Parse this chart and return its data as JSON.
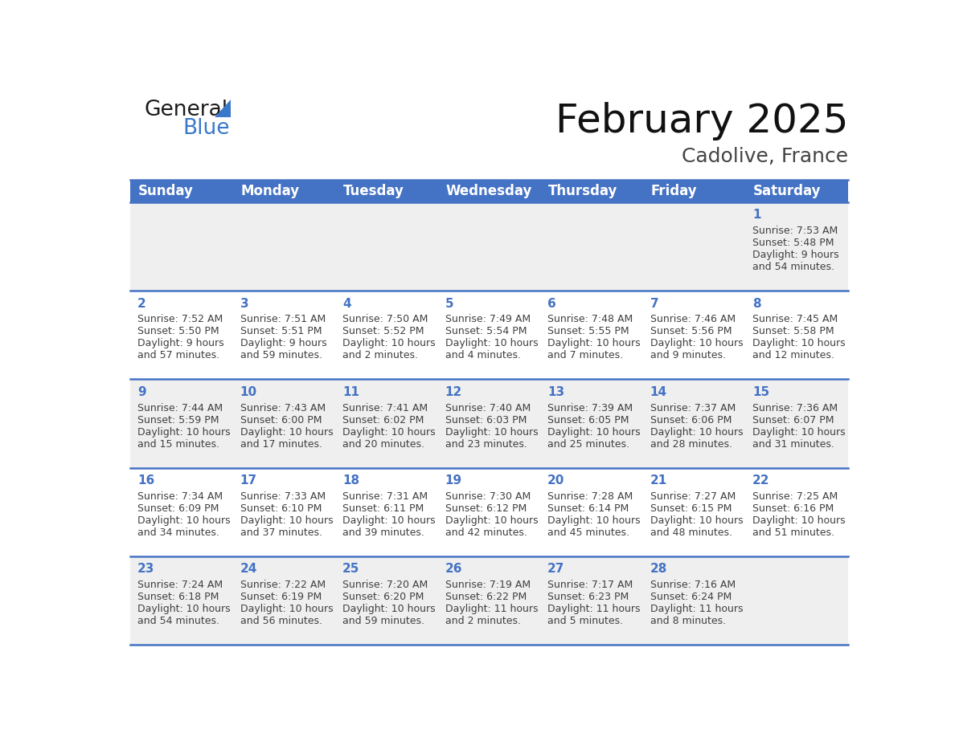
{
  "title": "February 2025",
  "subtitle": "Cadolive, France",
  "days_of_week": [
    "Sunday",
    "Monday",
    "Tuesday",
    "Wednesday",
    "Thursday",
    "Friday",
    "Saturday"
  ],
  "header_bg_color": "#4472C4",
  "header_text_color": "#FFFFFF",
  "row_bg_odd": "#EFEFEF",
  "row_bg_even": "#FFFFFF",
  "border_color": "#4472C4",
  "day_num_color": "#4472C4",
  "text_color": "#404040",
  "grid_line_color": "#4472C4",
  "calendar_data": [
    {
      "day": 1,
      "col": 6,
      "row": 0,
      "sunrise": "7:53 AM",
      "sunset": "5:48 PM",
      "daylight_h": "9 hours",
      "daylight_m": "and 54 minutes."
    },
    {
      "day": 2,
      "col": 0,
      "row": 1,
      "sunrise": "7:52 AM",
      "sunset": "5:50 PM",
      "daylight_h": "9 hours",
      "daylight_m": "and 57 minutes."
    },
    {
      "day": 3,
      "col": 1,
      "row": 1,
      "sunrise": "7:51 AM",
      "sunset": "5:51 PM",
      "daylight_h": "9 hours",
      "daylight_m": "and 59 minutes."
    },
    {
      "day": 4,
      "col": 2,
      "row": 1,
      "sunrise": "7:50 AM",
      "sunset": "5:52 PM",
      "daylight_h": "10 hours",
      "daylight_m": "and 2 minutes."
    },
    {
      "day": 5,
      "col": 3,
      "row": 1,
      "sunrise": "7:49 AM",
      "sunset": "5:54 PM",
      "daylight_h": "10 hours",
      "daylight_m": "and 4 minutes."
    },
    {
      "day": 6,
      "col": 4,
      "row": 1,
      "sunrise": "7:48 AM",
      "sunset": "5:55 PM",
      "daylight_h": "10 hours",
      "daylight_m": "and 7 minutes."
    },
    {
      "day": 7,
      "col": 5,
      "row": 1,
      "sunrise": "7:46 AM",
      "sunset": "5:56 PM",
      "daylight_h": "10 hours",
      "daylight_m": "and 9 minutes."
    },
    {
      "day": 8,
      "col": 6,
      "row": 1,
      "sunrise": "7:45 AM",
      "sunset": "5:58 PM",
      "daylight_h": "10 hours",
      "daylight_m": "and 12 minutes."
    },
    {
      "day": 9,
      "col": 0,
      "row": 2,
      "sunrise": "7:44 AM",
      "sunset": "5:59 PM",
      "daylight_h": "10 hours",
      "daylight_m": "and 15 minutes."
    },
    {
      "day": 10,
      "col": 1,
      "row": 2,
      "sunrise": "7:43 AM",
      "sunset": "6:00 PM",
      "daylight_h": "10 hours",
      "daylight_m": "and 17 minutes."
    },
    {
      "day": 11,
      "col": 2,
      "row": 2,
      "sunrise": "7:41 AM",
      "sunset": "6:02 PM",
      "daylight_h": "10 hours",
      "daylight_m": "and 20 minutes."
    },
    {
      "day": 12,
      "col": 3,
      "row": 2,
      "sunrise": "7:40 AM",
      "sunset": "6:03 PM",
      "daylight_h": "10 hours",
      "daylight_m": "and 23 minutes."
    },
    {
      "day": 13,
      "col": 4,
      "row": 2,
      "sunrise": "7:39 AM",
      "sunset": "6:05 PM",
      "daylight_h": "10 hours",
      "daylight_m": "and 25 minutes."
    },
    {
      "day": 14,
      "col": 5,
      "row": 2,
      "sunrise": "7:37 AM",
      "sunset": "6:06 PM",
      "daylight_h": "10 hours",
      "daylight_m": "and 28 minutes."
    },
    {
      "day": 15,
      "col": 6,
      "row": 2,
      "sunrise": "7:36 AM",
      "sunset": "6:07 PM",
      "daylight_h": "10 hours",
      "daylight_m": "and 31 minutes."
    },
    {
      "day": 16,
      "col": 0,
      "row": 3,
      "sunrise": "7:34 AM",
      "sunset": "6:09 PM",
      "daylight_h": "10 hours",
      "daylight_m": "and 34 minutes."
    },
    {
      "day": 17,
      "col": 1,
      "row": 3,
      "sunrise": "7:33 AM",
      "sunset": "6:10 PM",
      "daylight_h": "10 hours",
      "daylight_m": "and 37 minutes."
    },
    {
      "day": 18,
      "col": 2,
      "row": 3,
      "sunrise": "7:31 AM",
      "sunset": "6:11 PM",
      "daylight_h": "10 hours",
      "daylight_m": "and 39 minutes."
    },
    {
      "day": 19,
      "col": 3,
      "row": 3,
      "sunrise": "7:30 AM",
      "sunset": "6:12 PM",
      "daylight_h": "10 hours",
      "daylight_m": "and 42 minutes."
    },
    {
      "day": 20,
      "col": 4,
      "row": 3,
      "sunrise": "7:28 AM",
      "sunset": "6:14 PM",
      "daylight_h": "10 hours",
      "daylight_m": "and 45 minutes."
    },
    {
      "day": 21,
      "col": 5,
      "row": 3,
      "sunrise": "7:27 AM",
      "sunset": "6:15 PM",
      "daylight_h": "10 hours",
      "daylight_m": "and 48 minutes."
    },
    {
      "day": 22,
      "col": 6,
      "row": 3,
      "sunrise": "7:25 AM",
      "sunset": "6:16 PM",
      "daylight_h": "10 hours",
      "daylight_m": "and 51 minutes."
    },
    {
      "day": 23,
      "col": 0,
      "row": 4,
      "sunrise": "7:24 AM",
      "sunset": "6:18 PM",
      "daylight_h": "10 hours",
      "daylight_m": "and 54 minutes."
    },
    {
      "day": 24,
      "col": 1,
      "row": 4,
      "sunrise": "7:22 AM",
      "sunset": "6:19 PM",
      "daylight_h": "10 hours",
      "daylight_m": "and 56 minutes."
    },
    {
      "day": 25,
      "col": 2,
      "row": 4,
      "sunrise": "7:20 AM",
      "sunset": "6:20 PM",
      "daylight_h": "10 hours",
      "daylight_m": "and 59 minutes."
    },
    {
      "day": 26,
      "col": 3,
      "row": 4,
      "sunrise": "7:19 AM",
      "sunset": "6:22 PM",
      "daylight_h": "11 hours",
      "daylight_m": "and 2 minutes."
    },
    {
      "day": 27,
      "col": 4,
      "row": 4,
      "sunrise": "7:17 AM",
      "sunset": "6:23 PM",
      "daylight_h": "11 hours",
      "daylight_m": "and 5 minutes."
    },
    {
      "day": 28,
      "col": 5,
      "row": 4,
      "sunrise": "7:16 AM",
      "sunset": "6:24 PM",
      "daylight_h": "11 hours",
      "daylight_m": "and 8 minutes."
    }
  ],
  "num_rows": 5,
  "num_cols": 7,
  "fig_width": 11.88,
  "fig_height": 9.18,
  "title_fontsize": 36,
  "subtitle_fontsize": 18,
  "header_fontsize": 12,
  "day_num_fontsize": 11,
  "cell_text_fontsize": 9
}
